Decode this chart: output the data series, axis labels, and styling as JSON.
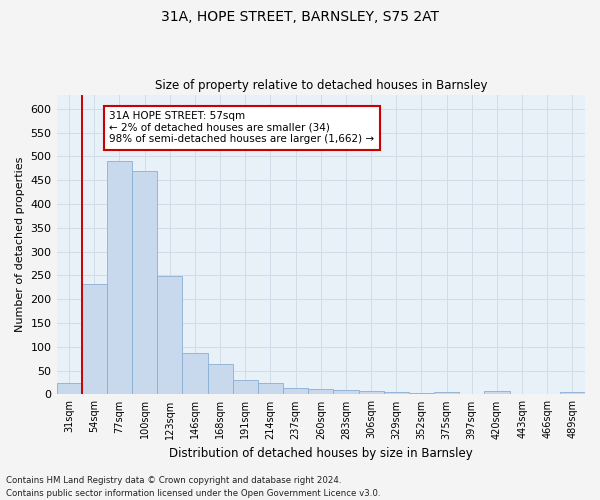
{
  "title": "31A, HOPE STREET, BARNSLEY, S75 2AT",
  "subtitle": "Size of property relative to detached houses in Barnsley",
  "xlabel": "Distribution of detached houses by size in Barnsley",
  "ylabel": "Number of detached properties",
  "footer_line1": "Contains HM Land Registry data © Crown copyright and database right 2024.",
  "footer_line2": "Contains public sector information licensed under the Open Government Licence v3.0.",
  "annotation_title": "31A HOPE STREET: 57sqm",
  "annotation_line2": "← 2% of detached houses are smaller (34)",
  "annotation_line3": "98% of semi-detached houses are larger (1,662) →",
  "bar_color": "#c8d8ed",
  "bar_edge_color": "#8aafd4",
  "vline_color": "#cc0000",
  "annotation_box_edge_color": "#cc0000",
  "grid_color": "#d0dce8",
  "background_color": "#e8f0f8",
  "fig_background_color": "#f4f4f4",
  "categories": [
    "31sqm",
    "54sqm",
    "77sqm",
    "100sqm",
    "123sqm",
    "146sqm",
    "168sqm",
    "191sqm",
    "214sqm",
    "237sqm",
    "260sqm",
    "283sqm",
    "306sqm",
    "329sqm",
    "352sqm",
    "375sqm",
    "397sqm",
    "420sqm",
    "443sqm",
    "466sqm",
    "489sqm"
  ],
  "values": [
    25,
    232,
    490,
    470,
    248,
    88,
    63,
    31,
    23,
    14,
    12,
    10,
    8,
    5,
    3,
    5,
    0,
    7,
    0,
    0,
    5
  ],
  "ylim": [
    0,
    630
  ],
  "yticks": [
    0,
    50,
    100,
    150,
    200,
    250,
    300,
    350,
    400,
    450,
    500,
    550,
    600
  ],
  "vline_x_index": 1,
  "figsize": [
    6.0,
    5.0
  ],
  "dpi": 100
}
